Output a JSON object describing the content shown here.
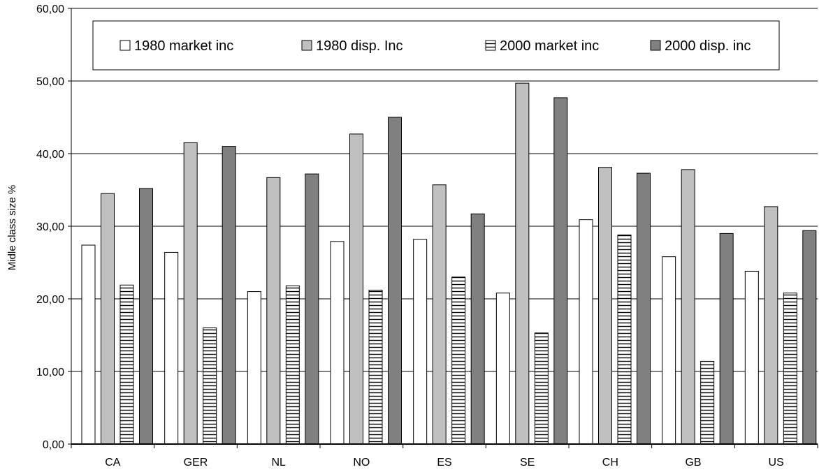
{
  "chart_data": {
    "type": "bar",
    "ylabel": "Midle class size %",
    "ylim": [
      0,
      60
    ],
    "yticks": [
      "0,00",
      "10,00",
      "20,00",
      "30,00",
      "40,00",
      "50,00",
      "60,00"
    ],
    "grid": true,
    "legend_position": "top",
    "categories": [
      "CA",
      "GER",
      "NL",
      "NO",
      "ES",
      "SE",
      "CH",
      "GB",
      "US"
    ],
    "series": [
      {
        "name": "1980 market inc",
        "values": [
          27.4,
          26.4,
          21.0,
          27.9,
          28.2,
          20.8,
          30.9,
          25.8,
          23.8
        ]
      },
      {
        "name": "1980 disp. Inc",
        "values": [
          34.5,
          41.5,
          36.7,
          42.7,
          35.7,
          49.7,
          38.1,
          37.8,
          32.7
        ]
      },
      {
        "name": "2000 market inc",
        "values": [
          21.9,
          16.0,
          21.8,
          21.2,
          23.0,
          15.3,
          28.8,
          11.4,
          20.8
        ]
      },
      {
        "name": "2000 disp. inc",
        "values": [
          35.2,
          41.0,
          37.2,
          45.0,
          31.7,
          47.7,
          37.3,
          29.0,
          29.4
        ]
      }
    ],
    "colors": {
      "series1_fill": "#ffffff",
      "series2_fill": "#c0c0c0",
      "series3_fill": "#ffffff",
      "series3_stripe": "#000000",
      "series4_fill": "#808080",
      "outline": "#000000"
    }
  }
}
